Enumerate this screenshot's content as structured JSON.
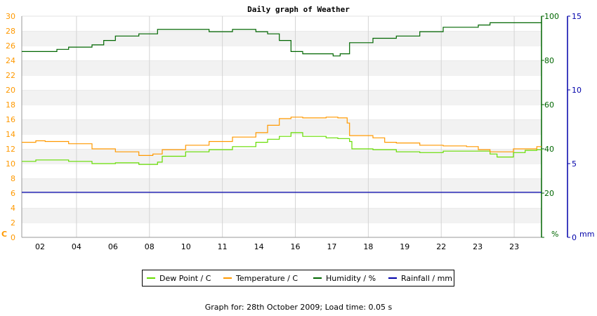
{
  "chart_data": {
    "type": "line",
    "title": "Daily graph of Weather",
    "x_ticks": [
      "02",
      "04",
      "06",
      "08",
      "10",
      "11",
      "14",
      "16",
      "17",
      "18",
      "19",
      "22",
      "23",
      "23"
    ],
    "axes": {
      "left": {
        "unit": "C",
        "range": [
          0,
          30
        ],
        "ticks": [
          0,
          2,
          4,
          6,
          8,
          10,
          12,
          14,
          16,
          18,
          20,
          22,
          24,
          26,
          28,
          30
        ],
        "color": "#ff9900"
      },
      "right_humidity": {
        "unit": "%",
        "range": [
          0,
          100
        ],
        "ticks": [
          0,
          20,
          40,
          60,
          80,
          100
        ],
        "color": "#006600"
      },
      "right_rainfall": {
        "unit": "mm",
        "range": [
          0,
          15
        ],
        "ticks": [
          0,
          5,
          10,
          15
        ],
        "color": "#0000aa"
      }
    },
    "grid": true,
    "legend_position": "bottom",
    "series": [
      {
        "name": "Dew Point / C",
        "axis": "left",
        "color": "#66dd00",
        "points": [
          [
            0,
            10.3
          ],
          [
            0.6,
            10.5
          ],
          [
            1.0,
            10.5
          ],
          [
            2.0,
            10.3
          ],
          [
            3.0,
            10.0
          ],
          [
            4.0,
            10.1
          ],
          [
            5.0,
            9.9
          ],
          [
            5.8,
            10.2
          ],
          [
            6.0,
            11.0
          ],
          [
            7.0,
            11.6
          ],
          [
            8.0,
            11.9
          ],
          [
            9.0,
            12.3
          ],
          [
            10.0,
            12.9
          ],
          [
            10.5,
            13.3
          ],
          [
            11.0,
            13.7
          ],
          [
            11.5,
            14.2
          ],
          [
            12.0,
            13.7
          ],
          [
            13.0,
            13.5
          ],
          [
            13.5,
            13.4
          ],
          [
            14.0,
            13.0
          ],
          [
            14.1,
            12.0
          ],
          [
            15.0,
            11.9
          ],
          [
            16.0,
            11.6
          ],
          [
            17.0,
            11.5
          ],
          [
            18.0,
            11.7
          ],
          [
            19.0,
            11.7
          ],
          [
            20.0,
            11.3
          ],
          [
            20.3,
            10.9
          ],
          [
            21.0,
            11.5
          ],
          [
            21.5,
            11.8
          ],
          [
            22.0,
            11.9
          ]
        ]
      },
      {
        "name": "Temperature / C",
        "axis": "left",
        "color": "#ff9900",
        "points": [
          [
            0,
            12.9
          ],
          [
            0.6,
            13.1
          ],
          [
            1.0,
            13.0
          ],
          [
            2.0,
            12.7
          ],
          [
            3.0,
            12.0
          ],
          [
            4.0,
            11.6
          ],
          [
            5.0,
            11.1
          ],
          [
            5.6,
            11.3
          ],
          [
            6.0,
            11.9
          ],
          [
            7.0,
            12.5
          ],
          [
            8.0,
            13.0
          ],
          [
            9.0,
            13.6
          ],
          [
            10.0,
            14.2
          ],
          [
            10.5,
            15.2
          ],
          [
            11.0,
            16.1
          ],
          [
            11.5,
            16.3
          ],
          [
            12.0,
            16.2
          ],
          [
            13.0,
            16.3
          ],
          [
            13.5,
            16.2
          ],
          [
            13.9,
            15.5
          ],
          [
            14.0,
            13.8
          ],
          [
            15.0,
            13.5
          ],
          [
            15.5,
            12.9
          ],
          [
            16.0,
            12.8
          ],
          [
            17.0,
            12.5
          ],
          [
            18.0,
            12.4
          ],
          [
            19.0,
            12.3
          ],
          [
            19.5,
            11.9
          ],
          [
            20.0,
            11.6
          ],
          [
            21.0,
            12.0
          ],
          [
            22.0,
            12.3
          ]
        ]
      },
      {
        "name": "Humidity / %",
        "axis": "right_humidity",
        "color": "#006600",
        "points": [
          [
            0,
            84
          ],
          [
            1.0,
            84
          ],
          [
            1.5,
            85
          ],
          [
            2.0,
            86
          ],
          [
            3.0,
            87
          ],
          [
            3.5,
            89
          ],
          [
            4.0,
            91
          ],
          [
            5.0,
            92
          ],
          [
            5.8,
            94
          ],
          [
            6.0,
            94
          ],
          [
            7.0,
            94
          ],
          [
            8.0,
            93
          ],
          [
            9.0,
            94
          ],
          [
            10.0,
            93
          ],
          [
            10.5,
            92
          ],
          [
            11.0,
            89
          ],
          [
            11.5,
            84
          ],
          [
            12.0,
            83
          ],
          [
            13.0,
            83
          ],
          [
            13.3,
            82
          ],
          [
            13.6,
            83
          ],
          [
            14.0,
            88
          ],
          [
            15.0,
            90
          ],
          [
            16.0,
            91
          ],
          [
            17.0,
            93
          ],
          [
            18.0,
            95
          ],
          [
            19.0,
            95
          ],
          [
            19.5,
            96
          ],
          [
            20.0,
            97
          ],
          [
            21.0,
            97
          ],
          [
            22.0,
            97
          ]
        ]
      },
      {
        "name": "Rainfall / mm",
        "axis": "right_rainfall",
        "color": "#0000aa",
        "points": [
          [
            0,
            3.05
          ],
          [
            22.0,
            3.05
          ]
        ]
      }
    ]
  },
  "footer": "Graph for: 28th October 2009; Load time: 0.05 s"
}
